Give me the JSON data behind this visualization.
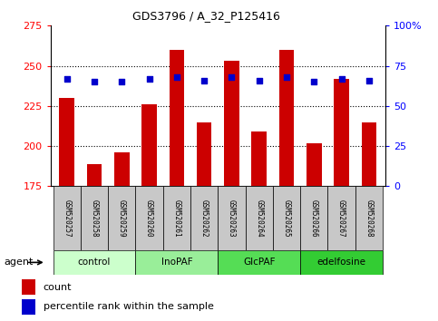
{
  "title": "GDS3796 / A_32_P125416",
  "samples": [
    "GSM520257",
    "GSM520258",
    "GSM520259",
    "GSM520260",
    "GSM520261",
    "GSM520262",
    "GSM520263",
    "GSM520264",
    "GSM520265",
    "GSM520266",
    "GSM520267",
    "GSM520268"
  ],
  "bar_values": [
    230,
    189,
    196,
    226,
    260,
    215,
    253,
    209,
    260,
    202,
    242,
    215
  ],
  "percentile_values": [
    67,
    65,
    65,
    67,
    68,
    66,
    68,
    66,
    68,
    65,
    67,
    66
  ],
  "bar_color": "#cc0000",
  "dot_color": "#0000cc",
  "ylim_left": [
    175,
    275
  ],
  "ylim_right": [
    0,
    100
  ],
  "yticks_left": [
    175,
    200,
    225,
    250,
    275
  ],
  "yticks_right": [
    0,
    25,
    50,
    75,
    100
  ],
  "ytick_labels_right": [
    "0",
    "25",
    "50",
    "75",
    "100%"
  ],
  "grid_values": [
    200,
    225,
    250
  ],
  "groups": [
    {
      "label": "control",
      "indices": [
        0,
        1,
        2
      ],
      "color": "#ccffcc"
    },
    {
      "label": "InoPAF",
      "indices": [
        3,
        4,
        5
      ],
      "color": "#99ee99"
    },
    {
      "label": "GlcPAF",
      "indices": [
        6,
        7,
        8
      ],
      "color": "#55dd55"
    },
    {
      "label": "edelfosine",
      "indices": [
        9,
        10,
        11
      ],
      "color": "#33cc33"
    }
  ],
  "agent_label": "agent",
  "legend_count_label": "count",
  "legend_percentile_label": "percentile rank within the sample",
  "bar_width": 0.55
}
